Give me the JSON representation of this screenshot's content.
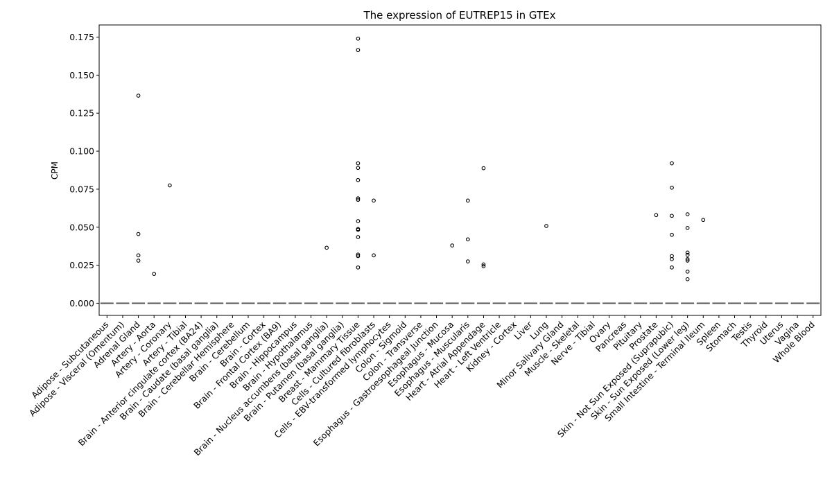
{
  "chart_data": {
    "type": "scatter",
    "title": "The expression of EUTREP15 in GTEx",
    "xlabel": "",
    "ylabel": "CPM",
    "ylim": [
      -0.008,
      0.183
    ],
    "yticks": [
      "0.000",
      "0.025",
      "0.050",
      "0.075",
      "0.100",
      "0.125",
      "0.150",
      "0.175"
    ],
    "grid": false,
    "categories": [
      "Adipose - Subcutaneous",
      "Adipose - Visceral (Omentum)",
      "Adrenal Gland",
      "Artery - Aorta",
      "Artery - Coronary",
      "Artery - Tibial",
      "Brain - Anterior cingulate cortex (BA24)",
      "Brain - Caudate (basal ganglia)",
      "Brain - Cerebellar Hemisphere",
      "Brain - Cerebellum",
      "Brain - Cortex",
      "Brain - Frontal Cortex (BA9)",
      "Brain - Hippocampus",
      "Brain - Hypothalamus",
      "Brain - Nucleus accumbens (basal ganglia)",
      "Brain - Putamen (basal ganglia)",
      "Breast - Mammary Tissue",
      "Cells - Cultured fibroblasts",
      "Cells - EBV-transformed lymphocytes",
      "Colon - Sigmoid",
      "Colon - Transverse",
      "Esophagus - Gastroesophageal Junction",
      "Esophagus - Mucosa",
      "Esophagus - Muscularis",
      "Heart - Atrial Appendage",
      "Heart - Left Ventricle",
      "Kidney - Cortex",
      "Liver",
      "Lung",
      "Minor Salivary Gland",
      "Muscle - Skeletal",
      "Nerve - Tibial",
      "Ovary",
      "Pancreas",
      "Pituitary",
      "Prostate",
      "Skin - Not Sun Exposed (Suprapubic)",
      "Skin - Sun Exposed (Lower leg)",
      "Small Intestine - Terminal Ileum",
      "Spleen",
      "Stomach",
      "Testis",
      "Thyroid",
      "Uterus",
      "Vagina",
      "Whole Blood"
    ],
    "median_values": [
      0,
      0,
      0,
      0,
      0,
      0,
      0,
      0,
      0,
      0,
      0,
      0,
      0,
      0,
      0,
      0,
      0,
      0,
      0,
      0,
      0,
      0,
      0,
      0,
      0,
      0,
      0,
      0,
      0,
      0,
      0,
      0,
      0,
      0,
      0,
      0,
      0,
      0,
      0,
      0,
      0,
      0,
      0,
      0,
      0,
      0
    ],
    "outliers": [
      {
        "category": "Adrenal Gland",
        "values": [
          0.1365,
          0.0455,
          0.0315,
          0.028
        ]
      },
      {
        "category": "Artery - Aorta",
        "values": [
          0.0193
        ]
      },
      {
        "category": "Artery - Coronary",
        "values": [
          0.0775
        ]
      },
      {
        "category": "Brain - Nucleus accumbens (basal ganglia)",
        "values": [
          0.0365
        ]
      },
      {
        "category": "Breast - Mammary Tissue",
        "values": [
          0.174,
          0.1665,
          0.092,
          0.089,
          0.081,
          0.069,
          0.068,
          0.054,
          0.0488,
          0.0483,
          0.0435,
          0.032,
          0.031,
          0.0235
        ]
      },
      {
        "category": "Cells - Cultured fibroblasts",
        "values": [
          0.0675,
          0.0315
        ]
      },
      {
        "category": "Esophagus - Mucosa",
        "values": [
          0.038
        ]
      },
      {
        "category": "Esophagus - Muscularis",
        "values": [
          0.0675,
          0.042,
          0.0275
        ]
      },
      {
        "category": "Heart - Atrial Appendage",
        "values": [
          0.0888,
          0.0255,
          0.0243
        ]
      },
      {
        "category": "Lung",
        "values": [
          0.0508
        ]
      },
      {
        "category": "Prostate",
        "values": [
          0.058
        ]
      },
      {
        "category": "Skin - Not Sun Exposed (Suprapubic)",
        "values": [
          0.092,
          0.076,
          0.0575,
          0.045,
          0.031,
          0.029,
          0.0235
        ]
      },
      {
        "category": "Skin - Sun Exposed (Lower leg)",
        "values": [
          0.0585,
          0.0495,
          0.0333,
          0.0318,
          0.029,
          0.028,
          0.0208,
          0.0158
        ]
      },
      {
        "category": "Small Intestine - Terminal Ileum",
        "values": [
          0.0548
        ]
      }
    ],
    "colors": {
      "median": "#555555",
      "marker_edge": "#000000",
      "axis": "#000000"
    }
  }
}
